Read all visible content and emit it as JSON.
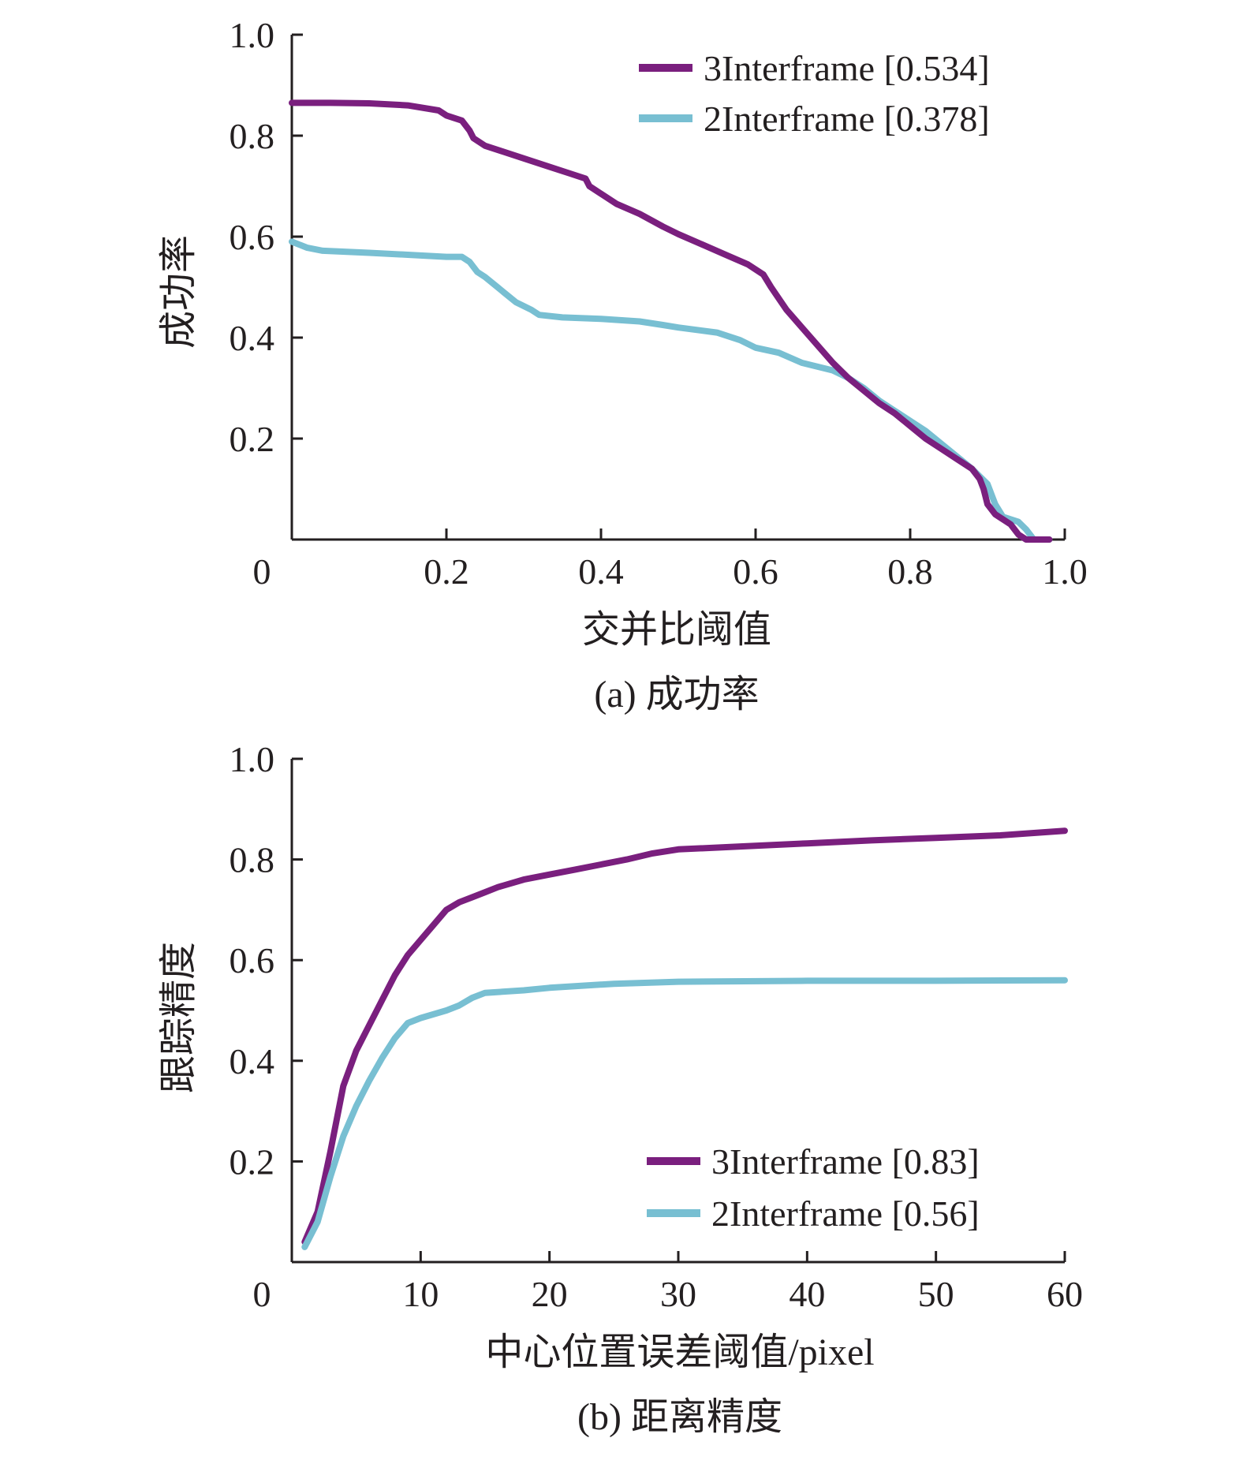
{
  "colors": {
    "series_3interframe": "#7a1f7e",
    "series_2interframe": "#78bfd2",
    "axis": "#231f20",
    "background": "#ffffff"
  },
  "chart_data": [
    {
      "type": "line",
      "title": "",
      "caption": "(a) 成功率",
      "xlabel": "交并比阈值",
      "ylabel": "成功率",
      "xlim": [
        0,
        1.0
      ],
      "ylim": [
        0,
        1.0
      ],
      "x_tick_labels": [
        "0",
        "0.2",
        "0.4",
        "0.6",
        "0.8",
        "1.0"
      ],
      "x_tick_values": [
        0,
        0.2,
        0.4,
        0.6,
        0.8,
        1.0
      ],
      "y_tick_labels": [
        "0.2",
        "0.4",
        "0.6",
        "0.8",
        "1.0"
      ],
      "y_tick_values": [
        0.2,
        0.4,
        0.6,
        0.8,
        1.0
      ],
      "origin_label": "0",
      "legend_position": "top-right",
      "series": [
        {
          "name": "3Interframe [0.534]",
          "color_key": "series_3interframe",
          "x": [
            0,
            0.05,
            0.1,
            0.15,
            0.19,
            0.2,
            0.22,
            0.23,
            0.235,
            0.25,
            0.27,
            0.3,
            0.33,
            0.36,
            0.38,
            0.385,
            0.4,
            0.42,
            0.45,
            0.48,
            0.5,
            0.53,
            0.56,
            0.59,
            0.61,
            0.62,
            0.64,
            0.66,
            0.68,
            0.7,
            0.72,
            0.74,
            0.76,
            0.78,
            0.8,
            0.82,
            0.84,
            0.86,
            0.88,
            0.89,
            0.895,
            0.9,
            0.91,
            0.92,
            0.93,
            0.94,
            0.95,
            0.96,
            0.98
          ],
          "y": [
            0.865,
            0.865,
            0.864,
            0.86,
            0.85,
            0.84,
            0.83,
            0.81,
            0.795,
            0.78,
            0.77,
            0.755,
            0.74,
            0.725,
            0.715,
            0.7,
            0.685,
            0.665,
            0.645,
            0.62,
            0.605,
            0.585,
            0.565,
            0.545,
            0.525,
            0.5,
            0.455,
            0.42,
            0.385,
            0.35,
            0.32,
            0.295,
            0.27,
            0.25,
            0.225,
            0.2,
            0.18,
            0.16,
            0.14,
            0.12,
            0.1,
            0.07,
            0.05,
            0.04,
            0.03,
            0.01,
            0.0,
            0.0,
            0.0
          ]
        },
        {
          "name": "2Interframe [0.378]",
          "color_key": "series_2interframe",
          "x": [
            0,
            0.02,
            0.04,
            0.1,
            0.15,
            0.2,
            0.22,
            0.23,
            0.24,
            0.25,
            0.27,
            0.29,
            0.31,
            0.32,
            0.35,
            0.4,
            0.45,
            0.48,
            0.5,
            0.55,
            0.58,
            0.6,
            0.63,
            0.66,
            0.7,
            0.72,
            0.74,
            0.76,
            0.78,
            0.8,
            0.82,
            0.84,
            0.86,
            0.88,
            0.9,
            0.91,
            0.92,
            0.94,
            0.95,
            0.96,
            0.98
          ],
          "y": [
            0.59,
            0.578,
            0.572,
            0.568,
            0.564,
            0.56,
            0.56,
            0.55,
            0.53,
            0.52,
            0.495,
            0.47,
            0.455,
            0.445,
            0.44,
            0.437,
            0.432,
            0.425,
            0.42,
            0.41,
            0.395,
            0.38,
            0.37,
            0.35,
            0.335,
            0.32,
            0.3,
            0.275,
            0.255,
            0.235,
            0.215,
            0.19,
            0.165,
            0.14,
            0.11,
            0.07,
            0.045,
            0.035,
            0.02,
            0.0,
            0.0
          ]
        }
      ]
    },
    {
      "type": "line",
      "title": "",
      "caption": "(b) 距离精度",
      "xlabel": "中心位置误差阈值/pixel",
      "ylabel": "跟踪精度",
      "xlim": [
        0,
        60
      ],
      "ylim": [
        0,
        1.0
      ],
      "x_tick_labels": [
        "0",
        "10",
        "20",
        "30",
        "40",
        "50",
        "60"
      ],
      "x_tick_values": [
        0,
        10,
        20,
        30,
        40,
        50,
        60
      ],
      "y_tick_labels": [
        "0.2",
        "0.4",
        "0.6",
        "0.8",
        "1.0"
      ],
      "y_tick_values": [
        0.2,
        0.4,
        0.6,
        0.8,
        1.0
      ],
      "origin_label": "0",
      "legend_position": "bottom-right",
      "series": [
        {
          "name": "3Interframe [0.83]",
          "color_key": "series_3interframe",
          "x": [
            1,
            2,
            3,
            4,
            5,
            6,
            7,
            8,
            9,
            10,
            11,
            12,
            13,
            14,
            15,
            16,
            18,
            20,
            22,
            24,
            26,
            28,
            30,
            35,
            40,
            45,
            50,
            55,
            60
          ],
          "y": [
            0.04,
            0.1,
            0.22,
            0.35,
            0.42,
            0.47,
            0.52,
            0.57,
            0.61,
            0.64,
            0.67,
            0.7,
            0.715,
            0.725,
            0.735,
            0.745,
            0.76,
            0.77,
            0.78,
            0.79,
            0.8,
            0.812,
            0.82,
            0.826,
            0.832,
            0.838,
            0.843,
            0.848,
            0.857
          ]
        },
        {
          "name": "2Interframe [0.56]",
          "color_key": "series_2interframe",
          "x": [
            1,
            2,
            3,
            4,
            5,
            6,
            7,
            8,
            9,
            10,
            12,
            13,
            14,
            15,
            18,
            20,
            25,
            30,
            40,
            50,
            60
          ],
          "y": [
            0.03,
            0.08,
            0.17,
            0.25,
            0.31,
            0.36,
            0.405,
            0.445,
            0.475,
            0.485,
            0.5,
            0.51,
            0.525,
            0.535,
            0.54,
            0.545,
            0.553,
            0.557,
            0.559,
            0.559,
            0.56
          ]
        }
      ]
    }
  ]
}
